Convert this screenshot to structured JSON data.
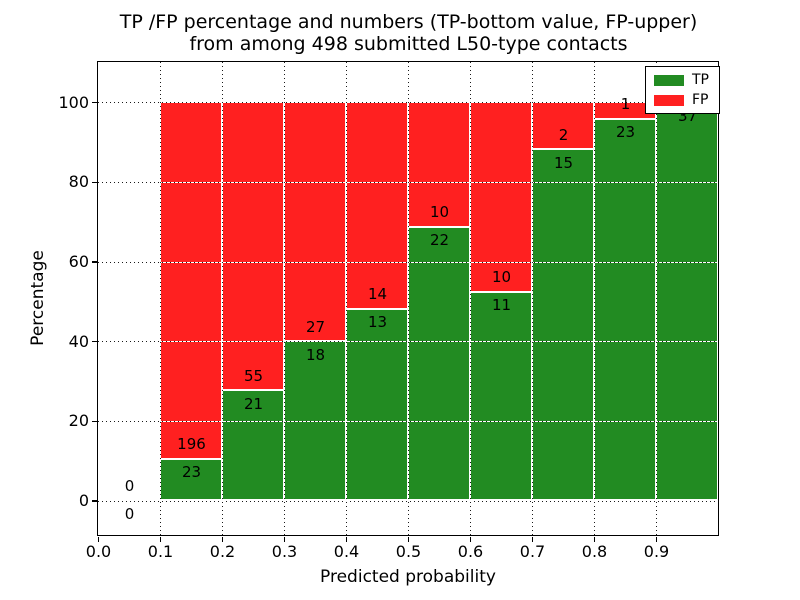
{
  "figure": {
    "title_line1": "TP /FP percentage and numbers (TP-bottom value, FP-upper)",
    "title_line2": "from among 498 submitted L50-type contacts",
    "xlabel": "Predicted probability",
    "ylabel": "Percentage"
  },
  "legend": {
    "position": "upper right",
    "items": [
      {
        "label": "TP",
        "color": "#228b22"
      },
      {
        "label": "FP",
        "color": "#ff2020"
      }
    ]
  },
  "chart_data": {
    "type": "bar",
    "stacked": true,
    "normalized_to_percent": true,
    "title": "TP /FP percentage and numbers (TP-bottom value, FP-upper) from among 498 submitted L50-type contacts",
    "xlabel": "Predicted probability",
    "ylabel": "Percentage",
    "total_contacts": 498,
    "xlim": [
      0.0,
      1.0
    ],
    "ylim": [
      -9,
      110
    ],
    "grid": "dotted",
    "bar_width": 0.1,
    "bin_starts": [
      0.0,
      0.1,
      0.2,
      0.3,
      0.4,
      0.5,
      0.6,
      0.7,
      0.8,
      0.9
    ],
    "xtick_values": [
      0.0,
      0.1,
      0.2,
      0.3,
      0.4,
      0.5,
      0.6,
      0.7,
      0.8,
      0.9
    ],
    "xtick_labels": [
      "0.0",
      "0.1",
      "0.2",
      "0.3",
      "0.4",
      "0.5",
      "0.6",
      "0.7",
      "0.8",
      "0.9"
    ],
    "ytick_values": [
      0,
      20,
      40,
      60,
      80,
      100
    ],
    "ytick_labels": [
      "0",
      "20",
      "40",
      "60",
      "80",
      "100"
    ],
    "series": [
      {
        "name": "TP",
        "color": "#228b22",
        "counts": [
          0,
          23,
          21,
          18,
          13,
          22,
          11,
          15,
          23,
          37
        ]
      },
      {
        "name": "FP",
        "color": "#ff2020",
        "counts": [
          0,
          196,
          55,
          27,
          14,
          10,
          10,
          2,
          1,
          0
        ]
      }
    ],
    "tp_percent_height": [
      0,
      10.5,
      27.63,
      40.0,
      48.15,
      68.75,
      52.38,
      88.24,
      95.83,
      100.0
    ]
  }
}
